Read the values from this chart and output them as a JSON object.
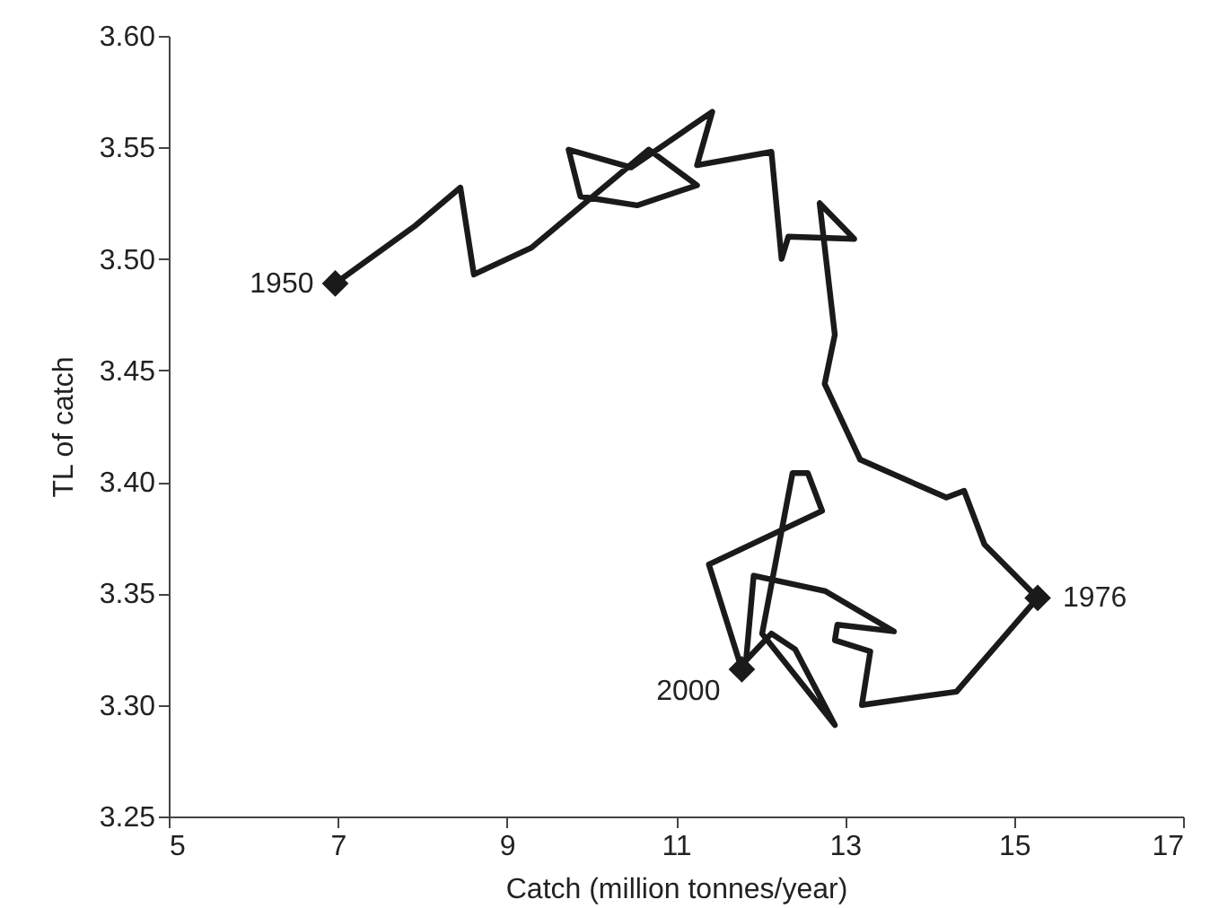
{
  "chart_data": {
    "type": "line",
    "xlabel": "Catch (million tonnes/year)",
    "ylabel": "TL of catch",
    "x": [
      6.97,
      7.92,
      8.45,
      8.61,
      9.29,
      10.68,
      11.25,
      10.54,
      9.87,
      9.73,
      10.47,
      11.43,
      11.25,
      12.13,
      12.25,
      12.33,
      13.11,
      12.7,
      12.88,
      12.76,
      13.18,
      14.2,
      14.41,
      14.65,
      15.28,
      14.32,
      13.2,
      13.3,
      12.88,
      12.91,
      13.58,
      12.77,
      11.92,
      11.83,
      12.13,
      12.41,
      12.88,
      12.02,
      12.38,
      12.56,
      12.73,
      11.39,
      11.78
    ],
    "series": [
      {
        "color": "#1a1a1a",
        "values": [
          3.489,
          3.515,
          3.532,
          3.493,
          3.505,
          3.549,
          3.533,
          3.524,
          3.528,
          3.549,
          3.541,
          3.566,
          3.542,
          3.548,
          3.5,
          3.51,
          3.509,
          3.525,
          3.466,
          3.444,
          3.41,
          3.393,
          3.396,
          3.372,
          3.348,
          3.306,
          3.3,
          3.324,
          3.329,
          3.336,
          3.333,
          3.351,
          3.358,
          3.32,
          3.332,
          3.325,
          3.291,
          3.332,
          3.404,
          3.404,
          3.387,
          3.363,
          3.316
        ]
      }
    ],
    "annotations": [
      {
        "text": "1950",
        "x": 6.97,
        "y": 3.489
      },
      {
        "text": "1976",
        "x": 15.28,
        "y": 3.348
      },
      {
        "text": "2000",
        "x": 11.78,
        "y": 3.316
      }
    ],
    "marker": "none",
    "line_style": "solid",
    "grid": false,
    "xlim": [
      5,
      17
    ],
    "xticks": [
      5,
      7,
      9,
      11,
      13,
      15,
      17
    ],
    "ylim": [
      3.25,
      3.6
    ],
    "yticks": [
      {
        "value": 3.25,
        "label": "3.25"
      },
      {
        "value": 3.3,
        "label": "3.30"
      },
      3.35,
      {
        "value": 3.4,
        "label": "3.40"
      },
      3.45,
      {
        "value": 3.5,
        "label": "3.50"
      },
      3.55,
      {
        "value": 3.6,
        "label": "3.60"
      }
    ]
  }
}
